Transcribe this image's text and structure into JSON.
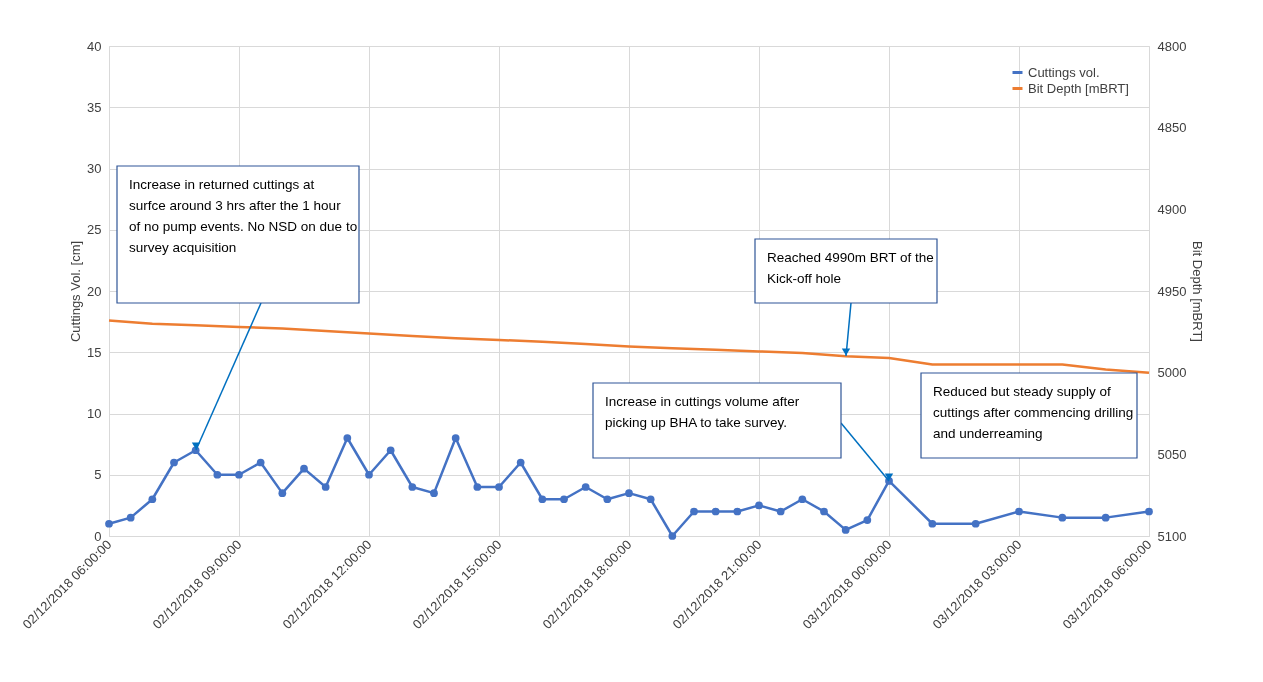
{
  "chart_data": {
    "type": "line",
    "ylabel": "Cuttings Vol. [cm]",
    "y2label": "Bit Depth [mBRT]",
    "xlim": [
      "2018-12-02T06:00",
      "2018-12-03T06:00"
    ],
    "xticks": [
      {
        "value": "2018-12-02T06:00",
        "label": "02/12/2018 06:00:00"
      },
      {
        "value": "2018-12-02T09:00",
        "label": "02/12/2018 09:00:00"
      },
      {
        "value": "2018-12-02T12:00",
        "label": "02/12/2018 12:00:00"
      },
      {
        "value": "2018-12-02T15:00",
        "label": "02/12/2018 15:00:00"
      },
      {
        "value": "2018-12-02T18:00",
        "label": "02/12/2018 18:00:00"
      },
      {
        "value": "2018-12-02T21:00",
        "label": "02/12/2018 21:00:00"
      },
      {
        "value": "2018-12-03T00:00",
        "label": "03/12/2018 00:00:00"
      },
      {
        "value": "2018-12-03T03:00",
        "label": "03/12/2018 03:00:00"
      },
      {
        "value": "2018-12-03T06:00",
        "label": "03/12/2018 06:00:00"
      }
    ],
    "ylim": [
      0,
      40
    ],
    "yticks": [
      0,
      5,
      10,
      15,
      20,
      25,
      30,
      35,
      40
    ],
    "y2lim": [
      5100,
      4800
    ],
    "y2ticks": [
      4800,
      4850,
      4900,
      4950,
      5000,
      5050,
      5100
    ],
    "grid": true,
    "legend": "top right",
    "line_style": "solid",
    "series": [
      {
        "name": "Cuttings vol.",
        "color": "#4472c4",
        "marker": "circle",
        "x": [
          "2018-12-02T06:00",
          "2018-12-02T06:30",
          "2018-12-02T07:00",
          "2018-12-02T07:30",
          "2018-12-02T08:00",
          "2018-12-02T08:30",
          "2018-12-02T09:00",
          "2018-12-02T09:30",
          "2018-12-02T10:00",
          "2018-12-02T10:30",
          "2018-12-02T11:00",
          "2018-12-02T11:30",
          "2018-12-02T12:00",
          "2018-12-02T12:30",
          "2018-12-02T13:00",
          "2018-12-02T13:30",
          "2018-12-02T14:00",
          "2018-12-02T14:30",
          "2018-12-02T15:00",
          "2018-12-02T15:30",
          "2018-12-02T16:00",
          "2018-12-02T16:30",
          "2018-12-02T17:00",
          "2018-12-02T17:30",
          "2018-12-02T18:00",
          "2018-12-02T18:30",
          "2018-12-02T19:00",
          "2018-12-02T19:30",
          "2018-12-02T20:00",
          "2018-12-02T20:30",
          "2018-12-02T21:00",
          "2018-12-02T21:30",
          "2018-12-02T22:00",
          "2018-12-02T22:30",
          "2018-12-02T23:00",
          "2018-12-02T23:30",
          "2018-12-03T00:00",
          "2018-12-03T01:00",
          "2018-12-03T02:00",
          "2018-12-03T03:00",
          "2018-12-03T04:00",
          "2018-12-03T05:00",
          "2018-12-03T06:00"
        ],
        "values": [
          1,
          1.5,
          3,
          6,
          7,
          5,
          5,
          6,
          3.5,
          5.5,
          4,
          8,
          5,
          7,
          4,
          3.5,
          8,
          4,
          4,
          6,
          3,
          3,
          4,
          3,
          3.5,
          3,
          0,
          2,
          2,
          2,
          2.5,
          2,
          3,
          2,
          0.5,
          1.3,
          4.5,
          1,
          1,
          2,
          1.5,
          1.5,
          2
        ]
      },
      {
        "name": "Bit Depth [mBRT]",
        "color": "#ed7d31",
        "marker": "none",
        "axis": "y2",
        "x": [
          "2018-12-02T06:00",
          "2018-12-02T07:00",
          "2018-12-02T08:00",
          "2018-12-02T09:00",
          "2018-12-02T10:00",
          "2018-12-02T11:00",
          "2018-12-02T12:00",
          "2018-12-02T13:00",
          "2018-12-02T14:00",
          "2018-12-02T15:00",
          "2018-12-02T16:00",
          "2018-12-02T17:00",
          "2018-12-02T18:00",
          "2018-12-02T19:00",
          "2018-12-02T20:00",
          "2018-12-02T21:00",
          "2018-12-02T22:00",
          "2018-12-02T23:00",
          "2018-12-03T00:00",
          "2018-12-03T01:00",
          "2018-12-03T02:00",
          "2018-12-03T03:00",
          "2018-12-03T04:00",
          "2018-12-03T05:00",
          "2018-12-03T06:00"
        ],
        "values": [
          4968,
          4970,
          4971,
          4972,
          4973,
          4974.5,
          4976,
          4977.5,
          4979,
          4980,
          4981,
          4982.5,
          4984,
          4985,
          4986,
          4987,
          4988,
          4990,
          4991,
          4995,
          4995,
          4995,
          4995,
          4998,
          5000
        ]
      }
    ],
    "annotations": [
      "Increase in returned cuttings at surfce around 3 hrs after the 1 hour of no pump events. No NSD on due to survey acquisition",
      "Reached 4990m BRT of the Kick-off hole",
      "Increase in cuttings volume after picking up BHA to take survey.",
      "Reduced but steady supply of cuttings after commencing drilling and underreaming"
    ]
  }
}
